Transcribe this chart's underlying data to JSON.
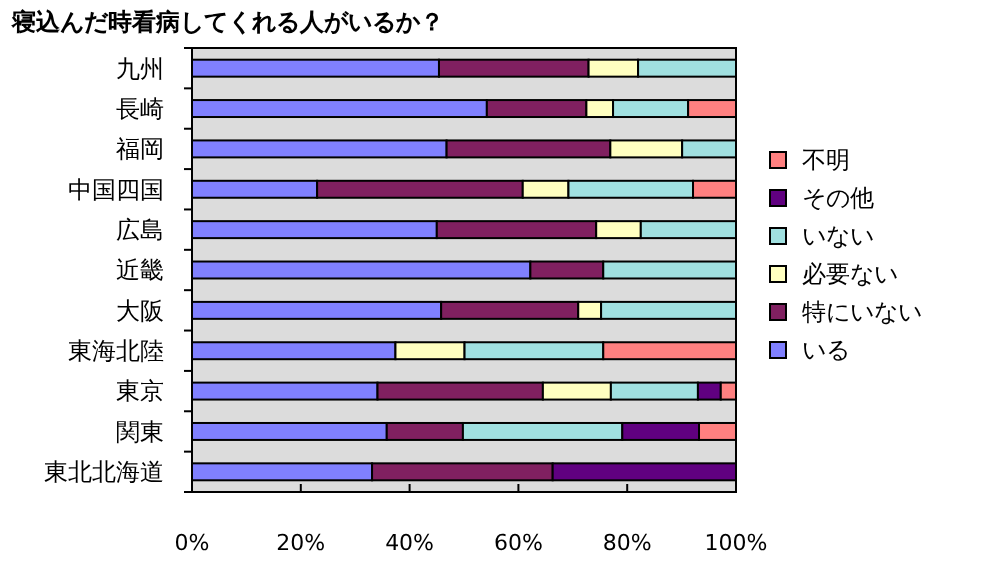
{
  "chart_data": {
    "type": "bar",
    "orientation": "horizontal",
    "stacked": true,
    "title": "寝込んだ時看病してくれる人がいるか？",
    "categories": [
      "九州",
      "長崎",
      "福岡",
      "中国四国",
      "広島",
      "近畿",
      "大阪",
      "東海北陸",
      "東京",
      "関東",
      "東北北海道"
    ],
    "series": [
      {
        "name": "いる",
        "color": "#8080ff",
        "values": [
          45.4,
          54.2,
          46.8,
          23.0,
          45.0,
          62.2,
          45.8,
          37.4,
          34.1,
          35.8,
          33.1
        ]
      },
      {
        "name": "特にいない",
        "color": "#802060",
        "values": [
          27.5,
          18.3,
          30.1,
          37.8,
          29.3,
          13.4,
          25.2,
          0,
          30.4,
          14.0,
          33.2
        ]
      },
      {
        "name": "必要ない",
        "color": "#ffffc0",
        "values": [
          9.1,
          4.9,
          13.2,
          8.4,
          8.2,
          0,
          4.2,
          12.7,
          12.5,
          0,
          0
        ]
      },
      {
        "name": "いない",
        "color": "#a0e0e0",
        "values": [
          18.0,
          13.8,
          9.9,
          22.9,
          17.5,
          24.4,
          24.8,
          25.5,
          16.0,
          29.3,
          0
        ]
      },
      {
        "name": "その他",
        "color": "#600080",
        "values": [
          0,
          0,
          0,
          0,
          0,
          0,
          0,
          0,
          4.2,
          14.1,
          33.7
        ]
      },
      {
        "name": "不明",
        "color": "#ff8080",
        "values": [
          0,
          8.8,
          0,
          7.9,
          0,
          0,
          0,
          24.4,
          2.8,
          6.8,
          0
        ]
      }
    ],
    "xlim": [
      0,
      100
    ],
    "xticks": [
      {
        "value": 0,
        "label": "0%"
      },
      {
        "value": 20,
        "label": "20%"
      },
      {
        "value": 40,
        "label": "40%"
      },
      {
        "value": 60,
        "label": "60%"
      },
      {
        "value": 80,
        "label": "80%"
      },
      {
        "value": 100,
        "label": "100%"
      }
    ],
    "grid": false,
    "legend": "right"
  }
}
